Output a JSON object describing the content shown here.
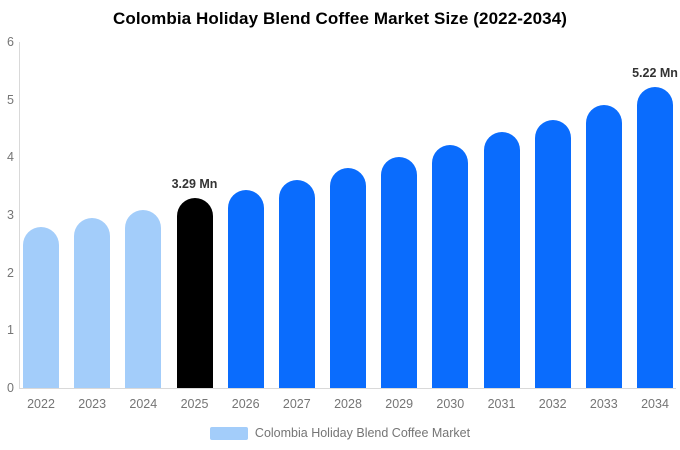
{
  "title": "Colombia Holiday Blend Coffee Market Size (2022-2034)",
  "legend": {
    "label": "Colombia Holiday Blend Coffee Market",
    "swatch_color": "#a3cdfa"
  },
  "chart_data": {
    "type": "bar",
    "title": "Colombia Holiday Blend Coffee Market Size (2022-2034)",
    "categories": [
      "2022",
      "2023",
      "2024",
      "2025",
      "2026",
      "2027",
      "2028",
      "2029",
      "2030",
      "2031",
      "2032",
      "2033",
      "2034"
    ],
    "values": [
      2.8,
      2.95,
      3.09,
      3.29,
      3.44,
      3.61,
      3.81,
      4.01,
      4.22,
      4.44,
      4.65,
      4.91,
      5.22
    ],
    "value_unit": "Mn",
    "bar_colors": [
      "#a3cdfa",
      "#a3cdfa",
      "#a3cdfa",
      "#000000",
      "#0a6cfd",
      "#0a6cfd",
      "#0a6cfd",
      "#0a6cfd",
      "#0a6cfd",
      "#0a6cfd",
      "#0a6cfd",
      "#0a6cfd",
      "#0a6cfd"
    ],
    "segment_colors": {
      "history": "#a3cdfa",
      "base_year": "#000000",
      "forecast": "#0a6cfd"
    },
    "annotations": [
      {
        "category": "2025",
        "text": "3.29 Mn"
      },
      {
        "category": "2034",
        "text": "5.22 Mn"
      }
    ],
    "xlabel": "",
    "ylabel": "",
    "ylim": [
      0,
      6
    ],
    "yticks": [
      0,
      1,
      2,
      3,
      4,
      5,
      6
    ],
    "grid": false,
    "legend_position": "bottom",
    "axis_color": "#d9d9d9",
    "tick_label_color": "#757575"
  }
}
